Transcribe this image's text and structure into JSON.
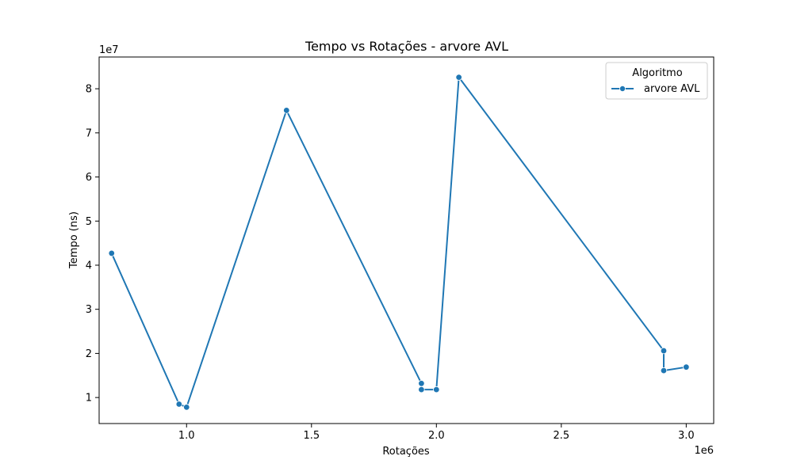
{
  "chart_data": {
    "type": "line",
    "title": "Tempo vs Rotações - arvore AVL",
    "xlabel": "Rotações",
    "ylabel": "Tempo (ns)",
    "x_multiplier_label": "1e6",
    "y_multiplier_label": "1e7",
    "xlim": [
      0.65,
      3.11
    ],
    "ylim": [
      0.41,
      8.72
    ],
    "x_ticks": [
      1.0,
      1.5,
      2.0,
      2.5,
      3.0
    ],
    "x_tick_labels": [
      "1.0",
      "1.5",
      "2.0",
      "2.5",
      "3.0"
    ],
    "y_ticks": [
      1,
      2,
      3,
      4,
      5,
      6,
      7,
      8
    ],
    "y_tick_labels": [
      "1",
      "2",
      "3",
      "4",
      "5",
      "6",
      "7",
      "8"
    ],
    "grid": false,
    "legend": {
      "title": "Algoritmo",
      "placement": "top-right"
    },
    "series": [
      {
        "name": "arvore AVL",
        "color": "#1f77b4",
        "points": [
          [
            0.7,
            4.27
          ],
          [
            0.97,
            0.85
          ],
          [
            1.0,
            0.78
          ],
          [
            1.4,
            7.51
          ],
          [
            1.94,
            1.32
          ],
          [
            1.94,
            1.18
          ],
          [
            2.0,
            1.18
          ],
          [
            2.09,
            8.26
          ],
          [
            2.91,
            2.06
          ],
          [
            2.91,
            1.61
          ],
          [
            3.0,
            1.69
          ]
        ]
      }
    ]
  }
}
